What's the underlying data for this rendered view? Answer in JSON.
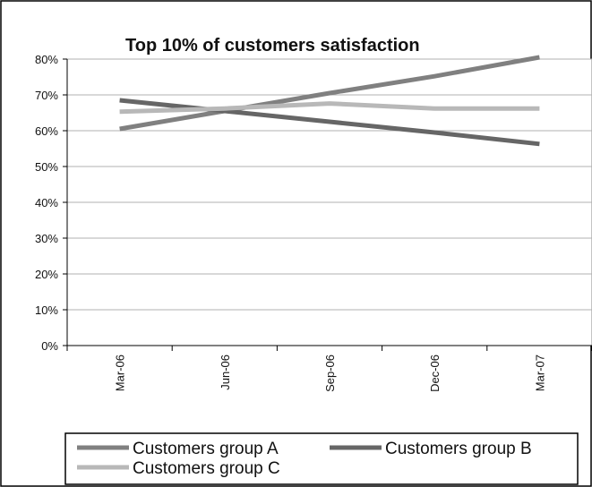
{
  "chart_data": {
    "type": "line",
    "title": "Top 10% of customers satisfaction",
    "xlabel": "",
    "ylabel": "",
    "categories": [
      "Mar-06",
      "Jun-06",
      "Sep-06",
      "Dec-06",
      "Mar-07"
    ],
    "y_ticks": [
      "0%",
      "10%",
      "20%",
      "30%",
      "40%",
      "50%",
      "60%",
      "70%",
      "80%"
    ],
    "ylim": [
      0,
      80
    ],
    "grid": true,
    "legend_position": "bottom",
    "series": [
      {
        "name": "Customers group A",
        "color": "#808080",
        "values": [
          60.5,
          65.5,
          70.5,
          75.2,
          80.5
        ]
      },
      {
        "name": "Customers group B",
        "color": "#666666",
        "values": [
          68.5,
          65.5,
          62.5,
          59.5,
          56.3
        ]
      },
      {
        "name": "Customers group C",
        "color": "#b8b8b8",
        "values": [
          65.3,
          66.2,
          67.6,
          66.2,
          66.2
        ]
      }
    ]
  }
}
